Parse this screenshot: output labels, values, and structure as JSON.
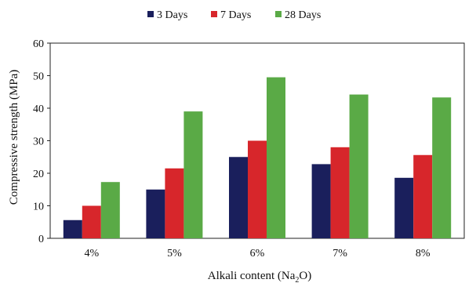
{
  "chart_data": {
    "type": "bar",
    "categories": [
      "4%",
      "5%",
      "6%",
      "7%",
      "8%"
    ],
    "series": [
      {
        "name": "3 Days",
        "color": "#1a1f5c",
        "values": [
          5.6,
          15.0,
          25.0,
          22.8,
          18.6
        ]
      },
      {
        "name": "7 Days",
        "color": "#d7262b",
        "values": [
          10.0,
          21.5,
          30.0,
          28.0,
          25.6
        ]
      },
      {
        "name": "28 Days",
        "color": "#5aaa46",
        "values": [
          17.3,
          39.0,
          49.5,
          44.2,
          43.3
        ]
      }
    ],
    "title": "",
    "xlabel": "Alkali content (Na",
    "xlabel_sub": "2",
    "xlabel_tail": "O)",
    "ylabel": "Compressive strength (MPa)",
    "ylim": [
      0,
      60
    ],
    "yticks": [
      0,
      10,
      20,
      30,
      40,
      50,
      60
    ],
    "grid": false,
    "legend_position": "top-center"
  }
}
